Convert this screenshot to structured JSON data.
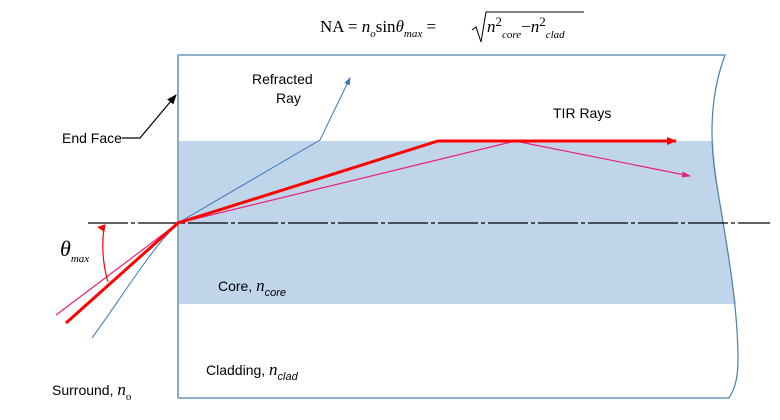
{
  "equation": {
    "lhs": "NA",
    "eq": "=",
    "n": "n",
    "n_sub": "o",
    "sin": "sin",
    "theta": "θ",
    "theta_sub": "max",
    "core_sub": "core",
    "clad_sub": "clad",
    "sq": "2",
    "minus": "−"
  },
  "labels": {
    "refracted_ray_line1": "Refracted",
    "refracted_ray_line2": "Ray",
    "end_face": "End Face",
    "tir_rays": "TIR Rays",
    "theta": "θ",
    "theta_sub": "max",
    "core": "Core, ",
    "core_n": "n",
    "core_sub": "core",
    "cladding": "Cladding, ",
    "clad_n": "n",
    "clad_sub": "clad",
    "surround": "Surround, ",
    "surround_n": "n",
    "surround_sub": "o"
  },
  "colors": {
    "core_fill": "#c0d5e9",
    "fiber_outline": "#4a7fb0",
    "tir_ray": "#ff0000",
    "skew_ray": "#e8207a",
    "refracted_ray": "#3b78bd"
  }
}
